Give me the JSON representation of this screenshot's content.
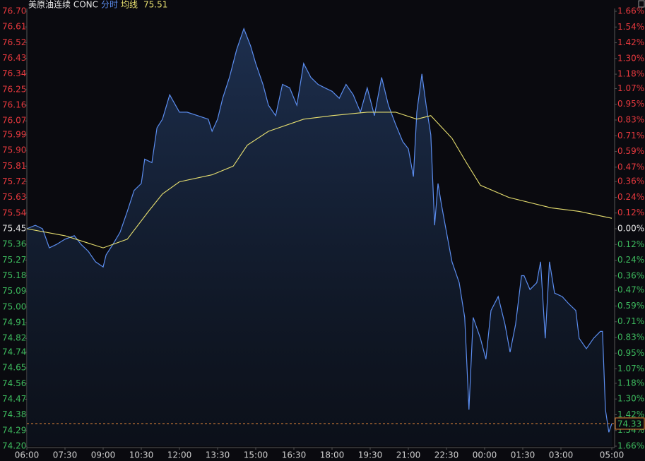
{
  "chart_data": {
    "type": "line",
    "title": "美原油连续 CONC",
    "average_value": 75.51,
    "last_price": 74.33,
    "up_color": "#e8393e",
    "down_color": "#3dbb5e",
    "flat_color": "#e6e6e6",
    "xlim": [
      0,
      1380
    ],
    "xticks": [
      {
        "value": 0,
        "label": "06:00"
      },
      {
        "value": 90,
        "label": "07:30"
      },
      {
        "value": 180,
        "label": "09:00"
      },
      {
        "value": 270,
        "label": "10:30"
      },
      {
        "value": 360,
        "label": "12:00"
      },
      {
        "value": 450,
        "label": "13:30"
      },
      {
        "value": 540,
        "label": "15:00"
      },
      {
        "value": 630,
        "label": "16:30"
      },
      {
        "value": 720,
        "label": "18:00"
      },
      {
        "value": 810,
        "label": "19:30"
      },
      {
        "value": 900,
        "label": "21:00"
      },
      {
        "value": 990,
        "label": "22:30"
      },
      {
        "value": 1080,
        "label": "00:00"
      },
      {
        "value": 1170,
        "label": "01:30"
      },
      {
        "value": 1260,
        "label": "03:00"
      },
      {
        "value": 1380,
        "label": "05:00"
      }
    ],
    "ylim": [
      74.2,
      76.7
    ],
    "yticks": [
      {
        "value": 76.7,
        "label": "76.70"
      },
      76.61,
      76.52,
      76.43,
      76.34,
      76.25,
      76.16,
      76.07,
      75.99,
      {
        "value": 75.9,
        "label": "75.90"
      },
      75.81,
      75.72,
      75.63,
      75.54,
      75.45,
      75.36,
      75.27,
      75.18,
      75.09,
      {
        "value": 75.0,
        "label": "75.00"
      },
      74.91,
      74.82,
      74.74,
      74.65,
      74.56,
      74.47,
      74.38,
      74.29,
      {
        "value": 74.2,
        "label": "74.20"
      }
    ],
    "y2lim": [
      -1.66,
      1.66
    ],
    "y2ticks": [
      {
        "value": 1.66,
        "label": "1.66%"
      },
      {
        "value": 1.54,
        "label": "1.54%"
      },
      {
        "value": 1.42,
        "label": "1.42%"
      },
      {
        "value": 1.3,
        "label": "1.30%"
      },
      {
        "value": 1.18,
        "label": "1.18%"
      },
      {
        "value": 1.07,
        "label": "1.07%"
      },
      {
        "value": 0.95,
        "label": "0.95%"
      },
      {
        "value": 0.83,
        "label": "0.83%"
      },
      {
        "value": 0.71,
        "label": "0.71%"
      },
      {
        "value": 0.59,
        "label": "0.59%"
      },
      {
        "value": 0.47,
        "label": "0.47%"
      },
      {
        "value": 0.36,
        "label": "0.36%"
      },
      {
        "value": 0.24,
        "label": "0.24%"
      },
      {
        "value": 0.12,
        "label": "0.12%"
      },
      {
        "value": 0,
        "label": "0.00%"
      },
      {
        "value": -0.12,
        "label": "0.12%"
      },
      {
        "value": -0.24,
        "label": "0.24%"
      },
      {
        "value": -0.36,
        "label": "0.36%"
      },
      {
        "value": -0.47,
        "label": "0.47%"
      },
      {
        "value": -0.59,
        "label": "0.59%"
      },
      {
        "value": -0.71,
        "label": "0.71%"
      },
      {
        "value": -0.83,
        "label": "0.83%"
      },
      {
        "value": -0.95,
        "label": "0.95%"
      },
      {
        "value": -1.07,
        "label": "1.07%"
      },
      {
        "value": -1.18,
        "label": "1.18%"
      },
      {
        "value": -1.3,
        "label": "1.30%"
      },
      {
        "value": -1.42,
        "label": "1.42%"
      },
      {
        "value": -1.54,
        "label": "1.54%"
      },
      {
        "value": -1.66,
        "label": "1.66%"
      }
    ],
    "series": [
      {
        "name": "分时",
        "color": "#5b8def",
        "x": [
          0,
          20,
          37,
          53,
          70,
          90,
          112,
          128,
          145,
          162,
          180,
          187,
          203,
          220,
          237,
          253,
          270,
          278,
          295,
          307,
          320,
          337,
          360,
          378,
          403,
          428,
          437,
          450,
          462,
          478,
          495,
          512,
          528,
          540,
          557,
          570,
          587,
          603,
          620,
          637,
          653,
          670,
          687,
          703,
          720,
          737,
          753,
          770,
          787,
          803,
          820,
          837,
          853,
          870,
          887,
          900,
          912,
          920,
          932,
          942,
          953,
          962,
          970,
          978,
          990,
          1003,
          1020,
          1033,
          1043,
          1053,
          1070,
          1083,
          1095,
          1112,
          1128,
          1140,
          1153,
          1167,
          1173,
          1187,
          1203,
          1212,
          1223,
          1233,
          1245,
          1263,
          1278,
          1295,
          1303,
          1320,
          1337,
          1353,
          1358,
          1365,
          1373,
          1380
        ],
        "values": [
          75.45,
          75.47,
          75.45,
          75.34,
          75.36,
          75.39,
          75.41,
          75.36,
          75.32,
          75.26,
          75.23,
          75.3,
          75.36,
          75.43,
          75.55,
          75.67,
          75.71,
          75.85,
          75.83,
          76.03,
          76.08,
          76.22,
          76.12,
          76.12,
          76.1,
          76.08,
          76.01,
          76.08,
          76.2,
          76.32,
          76.48,
          76.6,
          76.5,
          76.4,
          76.28,
          76.16,
          76.1,
          76.28,
          76.26,
          76.16,
          76.4,
          76.32,
          76.28,
          76.26,
          76.24,
          76.2,
          76.28,
          76.22,
          76.12,
          76.26,
          76.1,
          76.32,
          76.16,
          76.05,
          75.95,
          75.91,
          75.75,
          76.12,
          76.34,
          76.16,
          75.99,
          75.47,
          75.71,
          75.59,
          75.43,
          75.26,
          75.14,
          74.94,
          74.41,
          74.94,
          74.82,
          74.7,
          74.98,
          75.06,
          74.9,
          74.74,
          74.9,
          75.18,
          75.18,
          75.1,
          75.14,
          75.26,
          74.82,
          75.26,
          75.08,
          75.06,
          75.02,
          74.98,
          74.82,
          74.76,
          74.82,
          74.86,
          74.86,
          74.41,
          74.28,
          74.33
        ]
      },
      {
        "name": "均线",
        "color": "#e8e070",
        "x": [
          0,
          90,
          180,
          237,
          287,
          320,
          360,
          437,
          487,
          520,
          570,
          653,
          720,
          803,
          870,
          920,
          953,
          1003,
          1037,
          1070,
          1137,
          1237,
          1303,
          1380
        ],
        "values": [
          75.45,
          75.41,
          75.34,
          75.39,
          75.55,
          75.65,
          75.72,
          75.76,
          75.81,
          75.93,
          76.01,
          76.08,
          76.1,
          76.12,
          76.12,
          76.08,
          76.1,
          75.97,
          75.83,
          75.7,
          75.63,
          75.57,
          75.55,
          75.51
        ]
      }
    ]
  }
}
